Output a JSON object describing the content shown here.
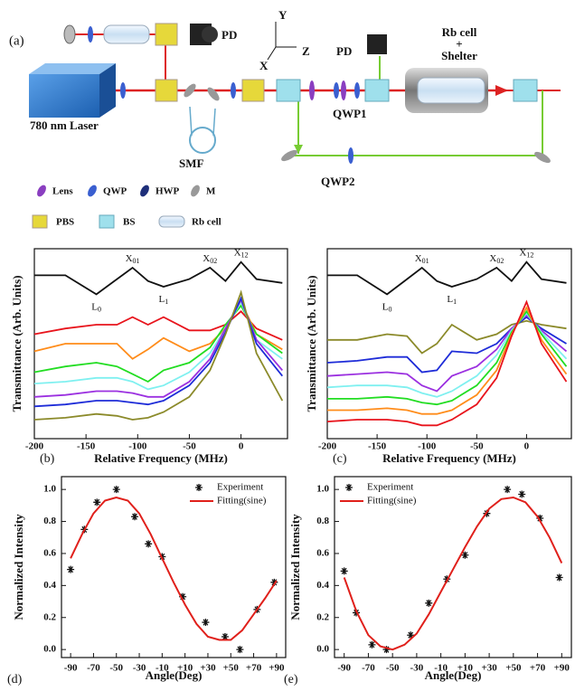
{
  "diagram": {
    "label": "(a)",
    "pd1": "PD",
    "axis_y": "Y",
    "axis_z": "Z",
    "axis_x": "X",
    "pd2": "PD",
    "rb_cell": "Rb cell",
    "plus": "+",
    "shelter": "Shelter",
    "laser": "780 nm Laser",
    "smf": "SMF",
    "qwp1": "QWP1",
    "qwp2": "QWP2",
    "legend": [
      "Lens",
      "QWP",
      "HWP",
      "M",
      "PBS",
      "BS",
      "Rb cell"
    ]
  },
  "chart_data": [
    {
      "type": "line",
      "panel_label": "(b)",
      "xlabel": "Relative Frequency (MHz)",
      "ylabel": "Transmittance (Arb. Units)",
      "xlim": [
        -200,
        45
      ],
      "ylim": [
        0,
        1
      ],
      "xticks": [
        -200,
        -150,
        -100,
        -50,
        0
      ],
      "x": [
        -200,
        -170,
        -140,
        -120,
        -105,
        -90,
        -75,
        -50,
        -30,
        -15,
        0,
        15,
        40
      ],
      "annotations": [
        {
          "text": "L",
          "sub": "0",
          "x": -140
        },
        {
          "text": "X",
          "sub": "01",
          "x": -105
        },
        {
          "text": "L",
          "sub": "1",
          "x": -75
        },
        {
          "text": "X",
          "sub": "02",
          "x": -30
        },
        {
          "text": "X",
          "sub": "12",
          "x": 0
        }
      ],
      "series": [
        {
          "color": "#111111",
          "values": [
            0.86,
            0.86,
            0.76,
            0.84,
            0.9,
            0.83,
            0.8,
            0.84,
            0.9,
            0.83,
            0.93,
            0.84,
            0.82
          ]
        },
        {
          "color": "#e8141c",
          "values": [
            0.55,
            0.58,
            0.6,
            0.6,
            0.64,
            0.6,
            0.64,
            0.57,
            0.57,
            0.6,
            0.67,
            0.58,
            0.52
          ]
        },
        {
          "color": "#ff8c1a",
          "values": [
            0.46,
            0.5,
            0.5,
            0.5,
            0.42,
            0.47,
            0.53,
            0.46,
            0.5,
            0.58,
            0.72,
            0.55,
            0.47
          ]
        },
        {
          "color": "#22dd22",
          "values": [
            0.35,
            0.38,
            0.4,
            0.38,
            0.34,
            0.3,
            0.36,
            0.4,
            0.48,
            0.6,
            0.7,
            0.55,
            0.45
          ]
        },
        {
          "color": "#7ff0f0",
          "values": [
            0.29,
            0.3,
            0.32,
            0.32,
            0.3,
            0.26,
            0.28,
            0.35,
            0.45,
            0.58,
            0.72,
            0.52,
            0.42
          ]
        },
        {
          "color": "#9b30e0",
          "values": [
            0.22,
            0.23,
            0.25,
            0.25,
            0.24,
            0.22,
            0.22,
            0.3,
            0.42,
            0.58,
            0.73,
            0.52,
            0.36
          ]
        },
        {
          "color": "#1e2cd8",
          "values": [
            0.17,
            0.18,
            0.2,
            0.2,
            0.19,
            0.18,
            0.2,
            0.28,
            0.4,
            0.56,
            0.74,
            0.5,
            0.33
          ]
        },
        {
          "color": "#8b8a2a",
          "values": [
            0.1,
            0.11,
            0.13,
            0.12,
            0.1,
            0.11,
            0.14,
            0.22,
            0.36,
            0.55,
            0.77,
            0.45,
            0.2
          ]
        }
      ]
    },
    {
      "type": "line",
      "panel_label": "(c)",
      "xlabel": "Relative Frequency (MHz)",
      "ylabel": "Transmittance (Arb. Units)",
      "xlim": [
        -200,
        45
      ],
      "ylim": [
        0,
        1
      ],
      "xticks": [
        -200,
        -150,
        -100,
        -50,
        0
      ],
      "x": [
        -200,
        -170,
        -140,
        -120,
        -105,
        -90,
        -75,
        -50,
        -30,
        -15,
        0,
        15,
        40
      ],
      "annotations": [
        {
          "text": "L",
          "sub": "0",
          "x": -140
        },
        {
          "text": "X",
          "sub": "01",
          "x": -105
        },
        {
          "text": "L",
          "sub": "1",
          "x": -75
        },
        {
          "text": "X",
          "sub": "02",
          "x": -30
        },
        {
          "text": "X",
          "sub": "12",
          "x": 0
        }
      ],
      "series": [
        {
          "color": "#111111",
          "values": [
            0.86,
            0.86,
            0.76,
            0.84,
            0.9,
            0.83,
            0.8,
            0.84,
            0.9,
            0.83,
            0.93,
            0.84,
            0.82
          ]
        },
        {
          "color": "#8b8a2a",
          "values": [
            0.52,
            0.52,
            0.55,
            0.54,
            0.45,
            0.5,
            0.6,
            0.52,
            0.55,
            0.6,
            0.62,
            0.6,
            0.58
          ]
        },
        {
          "color": "#1e2cd8",
          "values": [
            0.4,
            0.41,
            0.43,
            0.43,
            0.35,
            0.36,
            0.46,
            0.45,
            0.5,
            0.58,
            0.64,
            0.58,
            0.5
          ]
        },
        {
          "color": "#9b30e0",
          "values": [
            0.33,
            0.34,
            0.35,
            0.34,
            0.28,
            0.25,
            0.33,
            0.38,
            0.47,
            0.58,
            0.65,
            0.57,
            0.46
          ]
        },
        {
          "color": "#7ff0f0",
          "values": [
            0.27,
            0.28,
            0.28,
            0.27,
            0.24,
            0.22,
            0.25,
            0.33,
            0.44,
            0.57,
            0.66,
            0.56,
            0.42
          ]
        },
        {
          "color": "#22dd22",
          "values": [
            0.21,
            0.21,
            0.22,
            0.21,
            0.19,
            0.18,
            0.2,
            0.28,
            0.4,
            0.56,
            0.67,
            0.55,
            0.38
          ]
        },
        {
          "color": "#ff8c1a",
          "values": [
            0.15,
            0.15,
            0.16,
            0.15,
            0.13,
            0.13,
            0.15,
            0.23,
            0.36,
            0.55,
            0.69,
            0.52,
            0.34
          ]
        },
        {
          "color": "#e8141c",
          "values": [
            0.09,
            0.1,
            0.1,
            0.09,
            0.07,
            0.07,
            0.1,
            0.18,
            0.32,
            0.54,
            0.72,
            0.5,
            0.3
          ]
        }
      ]
    },
    {
      "type": "scatter",
      "panel_label": "(d)",
      "xlabel": "Angle(Deg)",
      "ylabel": "Normalized Intensity",
      "xlim": [
        -98,
        98
      ],
      "ylim": [
        -0.05,
        1.08
      ],
      "legend": "upper right",
      "xticks": [
        -90,
        -70,
        -50,
        -30,
        -10,
        {
          "value": 10,
          "label": "+10"
        },
        {
          "value": 30,
          "label": "+30"
        },
        {
          "value": 50,
          "label": "+50"
        },
        {
          "value": 70,
          "label": "+70"
        },
        {
          "value": 90,
          "label": "+90"
        }
      ],
      "yticks": [
        {
          "value": 0,
          "label": "0.0"
        },
        0.2,
        0.4,
        0.6,
        0.8,
        {
          "value": 1,
          "label": "1.0"
        }
      ],
      "series": [
        {
          "name": "Experiment",
          "marker": "star",
          "color": "#111111",
          "x": [
            -90,
            -78,
            -67,
            -50,
            -34,
            -22,
            -10,
            8,
            28,
            45,
            58,
            73,
            88
          ],
          "values": [
            0.5,
            0.75,
            0.92,
            1.0,
            0.83,
            0.66,
            0.58,
            0.33,
            0.17,
            0.08,
            0.0,
            0.25,
            0.42
          ]
        },
        {
          "name": "Fitting(sine)",
          "marker": "line",
          "color": "#e0201b",
          "x": [
            -90,
            -80,
            -70,
            -60,
            -50,
            -40,
            -30,
            -20,
            -10,
            0,
            10,
            20,
            30,
            40,
            50,
            60,
            70,
            80,
            90
          ],
          "values": [
            0.57,
            0.72,
            0.85,
            0.93,
            0.95,
            0.93,
            0.85,
            0.72,
            0.57,
            0.42,
            0.28,
            0.16,
            0.08,
            0.06,
            0.06,
            0.12,
            0.22,
            0.32,
            0.43
          ]
        }
      ]
    },
    {
      "type": "scatter",
      "panel_label": "(e)",
      "xlabel": "Angle(Deg)",
      "ylabel": "Normalized Intensity",
      "xlim": [
        -98,
        98
      ],
      "ylim": [
        -0.05,
        1.08
      ],
      "legend": "upper left",
      "xticks": [
        -90,
        -70,
        -50,
        -30,
        -10,
        {
          "value": 10,
          "label": "+10"
        },
        {
          "value": 30,
          "label": "+30"
        },
        {
          "value": 50,
          "label": "+50"
        },
        {
          "value": 70,
          "label": "+70"
        },
        {
          "value": 90,
          "label": "+90"
        }
      ],
      "yticks": [
        {
          "value": 0,
          "label": "0.0"
        },
        0.2,
        0.4,
        0.6,
        0.8,
        {
          "value": 1,
          "label": "1.0"
        }
      ],
      "series": [
        {
          "name": "Experiment",
          "marker": "star",
          "color": "#111111",
          "x": [
            -90,
            -80,
            -67,
            -55,
            -35,
            -20,
            -5,
            10,
            28,
            45,
            57,
            72,
            88
          ],
          "values": [
            0.49,
            0.23,
            0.03,
            0.0,
            0.09,
            0.29,
            0.44,
            0.59,
            0.85,
            1.0,
            0.97,
            0.82,
            0.45
          ]
        },
        {
          "name": "Fitting(sine)",
          "marker": "line",
          "color": "#e0201b",
          "x": [
            -90,
            -80,
            -70,
            -60,
            -50,
            -40,
            -30,
            -20,
            -10,
            0,
            10,
            20,
            30,
            40,
            50,
            60,
            70,
            80,
            90
          ],
          "values": [
            0.45,
            0.24,
            0.09,
            0.02,
            0.0,
            0.03,
            0.1,
            0.22,
            0.36,
            0.5,
            0.64,
            0.77,
            0.88,
            0.94,
            0.95,
            0.92,
            0.83,
            0.7,
            0.54
          ]
        }
      ]
    }
  ]
}
